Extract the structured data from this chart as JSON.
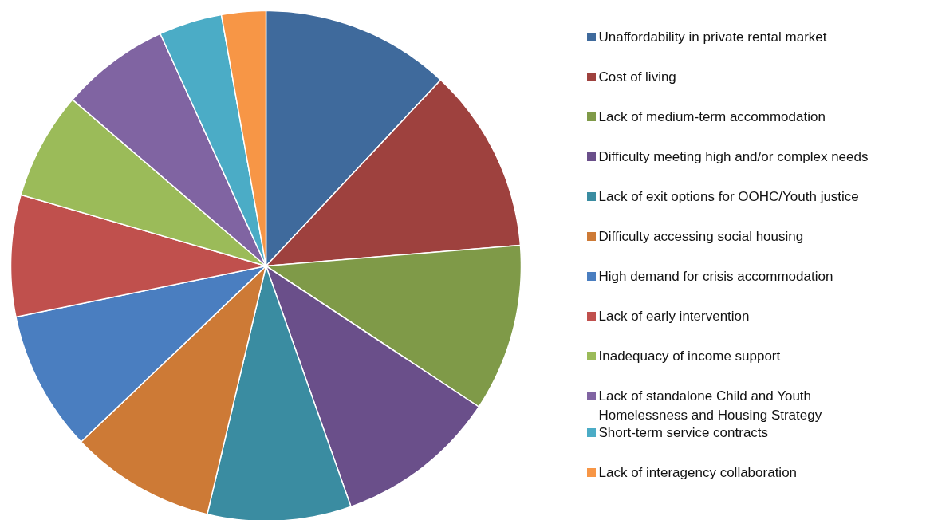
{
  "chart_data": {
    "type": "pie",
    "categories": [
      "Unaffordability in private rental market",
      "Cost of living",
      "Lack of medium-term accommodation",
      "Difficulty meeting high and/or complex needs",
      "Lack of exit options for OOHC/Youth justice",
      "Difficulty accessing social housing",
      "High demand for crisis accommodation",
      "Lack of early intervention",
      "Inadequacy of income support",
      "Lack of standalone Child and Youth Homelessness and Housing Strategy",
      "Short-term service contracts",
      "Lack of interagency collaboration"
    ],
    "values": [
      12.0,
      11.7,
      10.6,
      10.3,
      9.1,
      9.2,
      8.9,
      7.7,
      6.8,
      6.9,
      4.0,
      2.8
    ],
    "colors": [
      "#3f6a9c",
      "#9e413e",
      "#7f9a48",
      "#6a4f8a",
      "#3a8ca1",
      "#cd7a36",
      "#4a7ec0",
      "#c0504d",
      "#9bbb59",
      "#8064a2",
      "#4bacc6",
      "#f79646"
    ],
    "legend": "right"
  }
}
